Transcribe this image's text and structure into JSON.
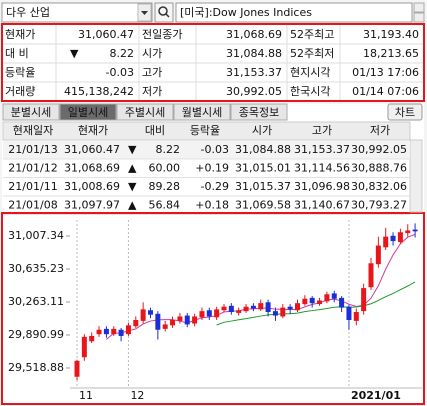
{
  "header": {
    "symbol": "다우 산업",
    "market": "[미국]:Dow Jones Indices"
  },
  "quote": {
    "rows": [
      [
        "현재가",
        "31,060.47",
        "전일종가",
        "31,068.69",
        "52주최고",
        "31,193.40"
      ],
      [
        "대 비",
        "8.22",
        "시가",
        "31,084.88",
        "52주최저",
        "18,213.65"
      ],
      [
        "등락율",
        "-0.03",
        "고가",
        "31,153.37",
        "현지시각",
        "01/13 17:06"
      ],
      [
        "거래량",
        "415,138,242",
        "저가",
        "30,992.05",
        "한국시각",
        "01/14 07:06"
      ]
    ],
    "change_arrow": "▼"
  },
  "tabs": {
    "items": [
      "분별시세",
      "일별시세",
      "주별시세",
      "월별시세",
      "종목정보"
    ],
    "active": 1,
    "button": "차트"
  },
  "daily": {
    "headers": [
      "현재일자",
      "현재가",
      "대비",
      "등락율",
      "시가",
      "고가",
      "저가"
    ],
    "rows": [
      [
        "21/01/13",
        "31,060.47",
        "▼",
        "8.22",
        "-0.03",
        "31,084.88",
        "31,153.37",
        "30,992.05"
      ],
      [
        "21/01/12",
        "31,068.69",
        "▲",
        "60.00",
        "+0.19",
        "31,015.01",
        "31,114.56",
        "30,888.76"
      ],
      [
        "21/01/11",
        "31,008.69",
        "▼",
        "89.28",
        "-0.29",
        "31,015.37",
        "31,096.98",
        "30,832.06"
      ],
      [
        "21/01/08",
        "31,097.97",
        "▲",
        "56.84",
        "+0.18",
        "31,069.58",
        "31,140.67",
        "30,793.27"
      ]
    ]
  },
  "chart_data": {
    "type": "candlestick",
    "categories": [
      "11",
      null,
      null,
      null,
      null,
      null,
      null,
      "12",
      null,
      null,
      null,
      null,
      null,
      null,
      null,
      null,
      null,
      null,
      null,
      null,
      null,
      null,
      null,
      null,
      null,
      null,
      null,
      null,
      null,
      null,
      null,
      null,
      null,
      null,
      null,
      null,
      null,
      "2021/01",
      null,
      null,
      null,
      null,
      null,
      null,
      null,
      null,
      null
    ],
    "open": [
      29420,
      29640,
      29820,
      29900,
      29960,
      29900,
      29950,
      29900,
      29990,
      30050,
      30170,
      30130,
      29960,
      30000,
      30050,
      30110,
      30020,
      30090,
      30170,
      30090,
      30170,
      30220,
      30140,
      30160,
      30220,
      30180,
      30260,
      30160,
      30100,
      30210,
      30170,
      30240,
      30310,
      30240,
      30270,
      30360,
      30310,
      30210,
      30050,
      30160,
      30430,
      30690,
      30880,
      31010,
      30940,
      31040,
      31080
    ],
    "high": [
      29610,
      29900,
      29920,
      29990,
      29990,
      29990,
      29970,
      30030,
      30100,
      30260,
      30200,
      30160,
      30050,
      30100,
      30140,
      30140,
      30130,
      30200,
      30200,
      30210,
      30240,
      30250,
      30200,
      30240,
      30250,
      30290,
      30290,
      30200,
      30240,
      30240,
      30290,
      30340,
      30330,
      30310,
      30380,
      30390,
      30330,
      30230,
      30190,
      30470,
      30760,
      31000,
      31100,
      31050,
      31090,
      31140,
      31150
    ],
    "low": [
      29380,
      29600,
      29800,
      29870,
      29860,
      29880,
      29820,
      29880,
      29970,
      30020,
      30080,
      29840,
      29930,
      29970,
      30020,
      29980,
      29990,
      30060,
      30060,
      30060,
      30150,
      30120,
      30110,
      30140,
      30160,
      30160,
      30100,
      30050,
      30080,
      30130,
      30150,
      30220,
      30200,
      30220,
      30250,
      30260,
      30150,
      29950,
      30000,
      30120,
      30400,
      30650,
      30850,
      30900,
      30920,
      31000,
      30990
    ],
    "close": [
      29600,
      29870,
      29880,
      29950,
      29900,
      29960,
      29880,
      30000,
      30060,
      30180,
      30120,
      29950,
      30010,
      30060,
      30100,
      30010,
      30100,
      30160,
      30100,
      30180,
      30210,
      30150,
      30170,
      30210,
      30190,
      30250,
      30150,
      30110,
      30200,
      30180,
      30250,
      30300,
      30250,
      30280,
      30350,
      30300,
      30200,
      30060,
      30150,
      30420,
      30700,
      30900,
      31000,
      30950,
      31050,
      31070,
      31060
    ],
    "up_color": "#e8161b",
    "down_color": "#1a2fd6",
    "ylim": [
      29293,
      31188
    ],
    "yticks": [
      {
        "value": 31007.34,
        "label": "31,007.34"
      },
      {
        "value": 30635.23,
        "label": "30,635.23"
      },
      {
        "value": 30263.11,
        "label": "30,263.11"
      },
      {
        "value": 29890.99,
        "label": "29,890.99"
      },
      {
        "value": 29518.88,
        "label": "29,518.88"
      }
    ]
  }
}
